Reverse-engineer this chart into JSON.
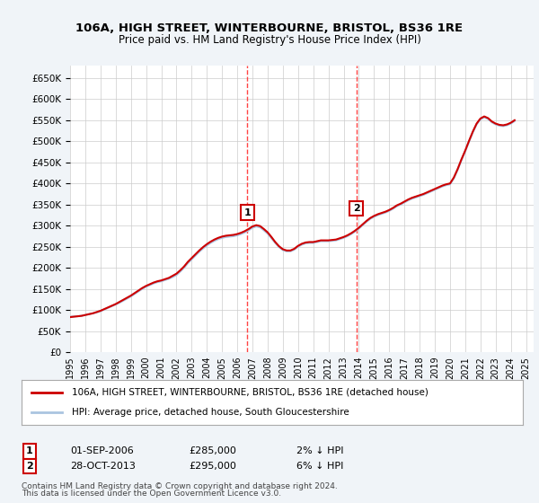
{
  "title": "106A, HIGH STREET, WINTERBOURNE, BRISTOL, BS36 1RE",
  "subtitle": "Price paid vs. HM Land Registry's House Price Index (HPI)",
  "ylabel_ticks": [
    "£0",
    "£50K",
    "£100K",
    "£150K",
    "£200K",
    "£250K",
    "£300K",
    "£350K",
    "£400K",
    "£450K",
    "£500K",
    "£550K",
    "£600K",
    "£650K"
  ],
  "ytick_values": [
    0,
    50000,
    100000,
    150000,
    200000,
    250000,
    300000,
    350000,
    400000,
    450000,
    500000,
    550000,
    600000,
    650000
  ],
  "ylim": [
    0,
    680000
  ],
  "xlim_start": 1995,
  "xlim_end": 2025.5,
  "xtick_years": [
    1995,
    1996,
    1997,
    1998,
    1999,
    2000,
    2001,
    2002,
    2003,
    2004,
    2005,
    2006,
    2007,
    2008,
    2009,
    2010,
    2011,
    2012,
    2013,
    2014,
    2015,
    2016,
    2017,
    2018,
    2019,
    2020,
    2021,
    2022,
    2023,
    2024,
    2025
  ],
  "purchase1_x": 2006.67,
  "purchase1_y": 285000,
  "purchase1_label": "1",
  "purchase2_x": 2013.83,
  "purchase2_y": 295000,
  "purchase2_label": "2",
  "hpi_color": "#aac4e0",
  "price_color": "#cc0000",
  "marker_box_color": "#cc0000",
  "vline_color": "#ff4444",
  "background_color": "#f0f4f8",
  "plot_bg_color": "#ffffff",
  "grid_color": "#cccccc",
  "legend_line1": "106A, HIGH STREET, WINTERBOURNE, BRISTOL, BS36 1RE (detached house)",
  "legend_line2": "HPI: Average price, detached house, South Gloucestershire",
  "footnote_line1": "Contains HM Land Registry data © Crown copyright and database right 2024.",
  "footnote_line2": "This data is licensed under the Open Government Licence v3.0.",
  "table_row1": "1    01-SEP-2006          £285,000          2% ↓ HPI",
  "table_row2": "2    28-OCT-2013          £295,000          6% ↓ HPI",
  "hpi_data_x": [
    1995.0,
    1995.25,
    1995.5,
    1995.75,
    1996.0,
    1996.25,
    1996.5,
    1996.75,
    1997.0,
    1997.25,
    1997.5,
    1997.75,
    1998.0,
    1998.25,
    1998.5,
    1998.75,
    1999.0,
    1999.25,
    1999.5,
    1999.75,
    2000.0,
    2000.25,
    2000.5,
    2000.75,
    2001.0,
    2001.25,
    2001.5,
    2001.75,
    2002.0,
    2002.25,
    2002.5,
    2002.75,
    2003.0,
    2003.25,
    2003.5,
    2003.75,
    2004.0,
    2004.25,
    2004.5,
    2004.75,
    2005.0,
    2005.25,
    2005.5,
    2005.75,
    2006.0,
    2006.25,
    2006.5,
    2006.75,
    2007.0,
    2007.25,
    2007.5,
    2007.75,
    2008.0,
    2008.25,
    2008.5,
    2008.75,
    2009.0,
    2009.25,
    2009.5,
    2009.75,
    2010.0,
    2010.25,
    2010.5,
    2010.75,
    2011.0,
    2011.25,
    2011.5,
    2011.75,
    2012.0,
    2012.25,
    2012.5,
    2012.75,
    2013.0,
    2013.25,
    2013.5,
    2013.75,
    2014.0,
    2014.25,
    2014.5,
    2014.75,
    2015.0,
    2015.25,
    2015.5,
    2015.75,
    2016.0,
    2016.25,
    2016.5,
    2016.75,
    2017.0,
    2017.25,
    2017.5,
    2017.75,
    2018.0,
    2018.25,
    2018.5,
    2018.75,
    2019.0,
    2019.25,
    2019.5,
    2019.75,
    2020.0,
    2020.25,
    2020.5,
    2020.75,
    2021.0,
    2021.25,
    2021.5,
    2021.75,
    2022.0,
    2022.25,
    2022.5,
    2022.75,
    2023.0,
    2023.25,
    2023.5,
    2023.75,
    2024.0,
    2024.25
  ],
  "hpi_data_y": [
    84000,
    84500,
    85000,
    86000,
    88000,
    90000,
    92000,
    94000,
    97000,
    101000,
    105000,
    109000,
    113000,
    117000,
    122000,
    127000,
    132000,
    138000,
    144000,
    150000,
    155000,
    159000,
    163000,
    166000,
    168000,
    171000,
    174000,
    178000,
    183000,
    191000,
    200000,
    211000,
    220000,
    229000,
    238000,
    246000,
    253000,
    259000,
    264000,
    268000,
    271000,
    273000,
    274000,
    275000,
    277000,
    280000,
    284000,
    289000,
    295000,
    298000,
    296000,
    289000,
    281000,
    270000,
    259000,
    249000,
    242000,
    239000,
    239000,
    243000,
    250000,
    255000,
    258000,
    259000,
    259000,
    261000,
    263000,
    263000,
    263000,
    264000,
    265000,
    268000,
    271000,
    275000,
    280000,
    286000,
    293000,
    301000,
    309000,
    316000,
    321000,
    325000,
    328000,
    331000,
    335000,
    340000,
    346000,
    350000,
    355000,
    360000,
    364000,
    367000,
    370000,
    373000,
    377000,
    381000,
    385000,
    389000,
    393000,
    396000,
    398000,
    412000,
    432000,
    455000,
    476000,
    499000,
    521000,
    540000,
    552000,
    557000,
    553000,
    545000,
    540000,
    537000,
    536000,
    538000,
    542000,
    548000
  ],
  "price_data_x": [
    1995.0,
    1995.25,
    1995.5,
    1995.75,
    1996.0,
    1996.25,
    1996.5,
    1996.75,
    1997.0,
    1997.25,
    1997.5,
    1997.75,
    1998.0,
    1998.25,
    1998.5,
    1998.75,
    1999.0,
    1999.25,
    1999.5,
    1999.75,
    2000.0,
    2000.25,
    2000.5,
    2000.75,
    2001.0,
    2001.25,
    2001.5,
    2001.75,
    2002.0,
    2002.25,
    2002.5,
    2002.75,
    2003.0,
    2003.25,
    2003.5,
    2003.75,
    2004.0,
    2004.25,
    2004.5,
    2004.75,
    2005.0,
    2005.25,
    2005.5,
    2005.75,
    2006.0,
    2006.25,
    2006.5,
    2006.75,
    2007.0,
    2007.25,
    2007.5,
    2007.75,
    2008.0,
    2008.25,
    2008.5,
    2008.75,
    2009.0,
    2009.25,
    2009.5,
    2009.75,
    2010.0,
    2010.25,
    2010.5,
    2010.75,
    2011.0,
    2011.25,
    2011.5,
    2011.75,
    2012.0,
    2012.25,
    2012.5,
    2012.75,
    2013.0,
    2013.25,
    2013.5,
    2013.75,
    2014.0,
    2014.25,
    2014.5,
    2014.75,
    2015.0,
    2015.25,
    2015.5,
    2015.75,
    2016.0,
    2016.25,
    2016.5,
    2016.75,
    2017.0,
    2017.25,
    2017.5,
    2017.75,
    2018.0,
    2018.25,
    2018.5,
    2018.75,
    2019.0,
    2019.25,
    2019.5,
    2019.75,
    2020.0,
    2020.25,
    2020.5,
    2020.75,
    2021.0,
    2021.25,
    2021.5,
    2021.75,
    2022.0,
    2022.25,
    2022.5,
    2022.75,
    2023.0,
    2023.25,
    2023.5,
    2023.75,
    2024.0,
    2024.25
  ],
  "price_data_y": [
    83000,
    84000,
    85000,
    86000,
    88000,
    90000,
    92000,
    95000,
    98000,
    102000,
    106000,
    110000,
    114000,
    119000,
    124000,
    129000,
    134000,
    140000,
    146000,
    152000,
    157000,
    161000,
    165000,
    168000,
    170000,
    173000,
    176000,
    181000,
    186000,
    194000,
    203000,
    214000,
    223000,
    232000,
    241000,
    249000,
    256000,
    262000,
    267000,
    271000,
    274000,
    276000,
    277000,
    278000,
    280000,
    283000,
    287000,
    292000,
    298000,
    301000,
    299000,
    292000,
    284000,
    273000,
    261000,
    251000,
    244000,
    241000,
    241000,
    245000,
    252000,
    257000,
    260000,
    261000,
    261000,
    263000,
    265000,
    265000,
    265000,
    266000,
    267000,
    270000,
    273000,
    277000,
    282000,
    288000,
    295000,
    303000,
    311000,
    318000,
    323000,
    327000,
    330000,
    333000,
    337000,
    342000,
    348000,
    352000,
    357000,
    362000,
    366000,
    369000,
    372000,
    375000,
    379000,
    383000,
    387000,
    391000,
    395000,
    398000,
    400000,
    414000,
    434000,
    457000,
    478000,
    501000,
    523000,
    542000,
    554000,
    559000,
    555000,
    547000,
    542000,
    539000,
    538000,
    540000,
    544000,
    550000
  ]
}
